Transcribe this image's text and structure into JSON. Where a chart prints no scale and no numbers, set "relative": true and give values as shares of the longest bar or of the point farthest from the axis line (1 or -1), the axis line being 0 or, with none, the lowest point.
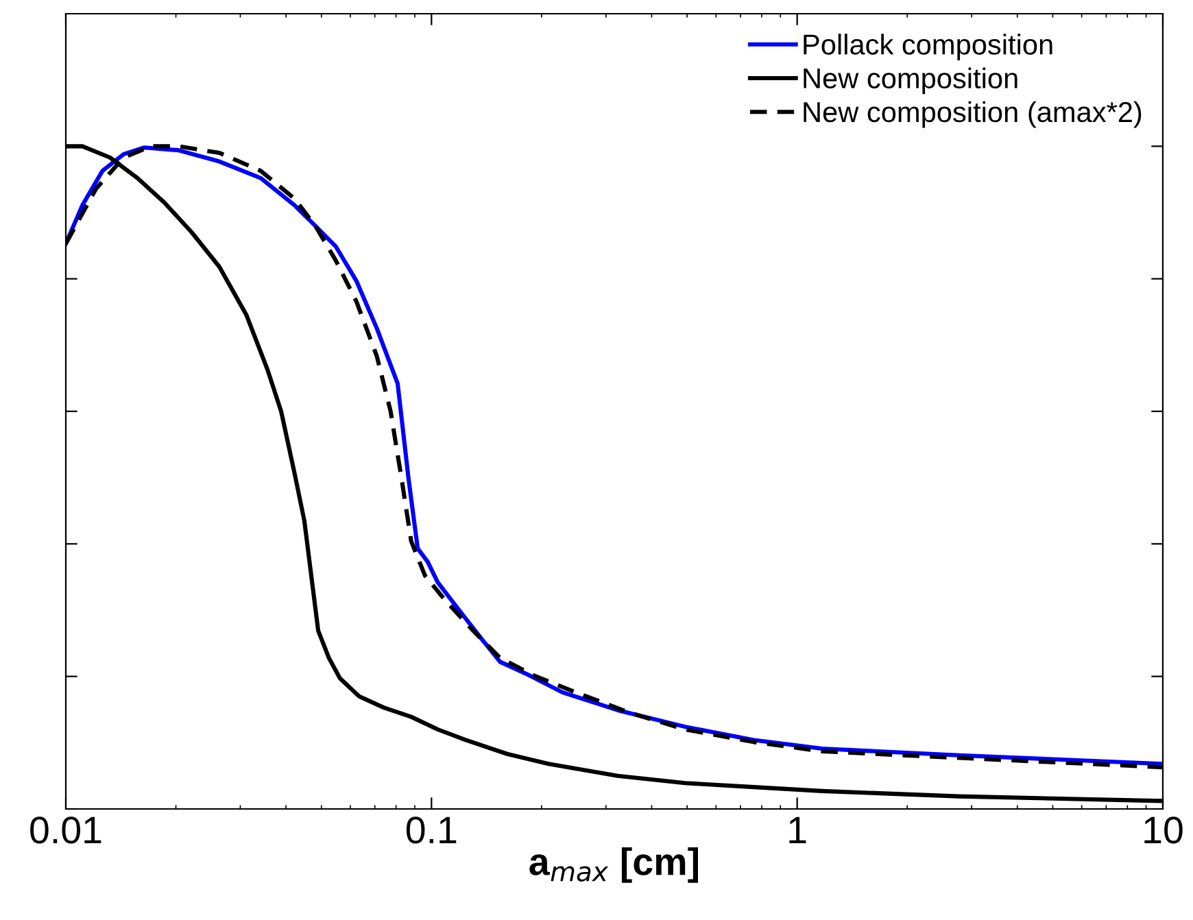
{
  "chart_data": {
    "type": "line",
    "relative": true,
    "log": "x",
    "xlabel": "a$_{max}$ [cm]",
    "xlim": [
      0.01,
      10
    ],
    "xticks": [
      0.01,
      0.1,
      1,
      10
    ],
    "tick_labels": "x",
    "legend": "top right",
    "grid": false,
    "series": [
      {
        "name": "Pollack composition",
        "color": "#0000ff",
        "line_style": "solid",
        "x": [
          0.01,
          0.0111,
          0.0126,
          0.0144,
          0.0164,
          0.0203,
          0.0263,
          0.0341,
          0.0422,
          0.0481,
          0.0547,
          0.0623,
          0.0709,
          0.0808,
          0.0866,
          0.0917,
          0.0976,
          0.104,
          0.119,
          0.136,
          0.154,
          0.183,
          0.228,
          0.323,
          0.494,
          0.761,
          1.17,
          2.77,
          10
        ],
        "values": [
          0.853,
          0.911,
          0.963,
          0.988,
          0.998,
          0.994,
          0.977,
          0.952,
          0.911,
          0.88,
          0.849,
          0.797,
          0.725,
          0.642,
          0.497,
          0.393,
          0.373,
          0.342,
          0.3,
          0.259,
          0.222,
          0.203,
          0.176,
          0.149,
          0.124,
          0.104,
          0.091,
          0.081,
          0.068
        ]
      },
      {
        "name": "New composition",
        "color": "#000000",
        "line_style": "solid",
        "x": [
          0.01,
          0.0111,
          0.0132,
          0.0157,
          0.0186,
          0.0221,
          0.0263,
          0.0312,
          0.0356,
          0.0388,
          0.0422,
          0.0449,
          0.049,
          0.0524,
          0.0562,
          0.0634,
          0.074,
          0.088,
          0.104,
          0.124,
          0.161,
          0.209,
          0.323,
          0.494,
          0.761,
          1.17,
          2.77,
          10
        ],
        "values": [
          1.0,
          1.0,
          0.983,
          0.952,
          0.915,
          0.87,
          0.818,
          0.745,
          0.663,
          0.6,
          0.507,
          0.435,
          0.269,
          0.228,
          0.197,
          0.17,
          0.153,
          0.139,
          0.12,
          0.104,
          0.083,
          0.068,
          0.05,
          0.039,
          0.033,
          0.027,
          0.019,
          0.012
        ]
      },
      {
        "name": "New composition (amax*2)",
        "color": "#000000",
        "line_style": "dashed",
        "x": [
          0.01,
          0.0121,
          0.0144,
          0.0171,
          0.0203,
          0.0263,
          0.0341,
          0.0422,
          0.0481,
          0.0547,
          0.0623,
          0.0709,
          0.0773,
          0.0829,
          0.088,
          0.096,
          0.109,
          0.13,
          0.154,
          0.191,
          0.248,
          0.349,
          0.494,
          0.761,
          1.17,
          2.77,
          10
        ],
        "values": [
          0.853,
          0.936,
          0.983,
          1.0,
          1.0,
          0.99,
          0.963,
          0.921,
          0.88,
          0.828,
          0.766,
          0.683,
          0.6,
          0.497,
          0.404,
          0.352,
          0.315,
          0.269,
          0.228,
          0.201,
          0.176,
          0.145,
          0.12,
          0.101,
          0.087,
          0.077,
          0.063
        ]
      }
    ]
  }
}
